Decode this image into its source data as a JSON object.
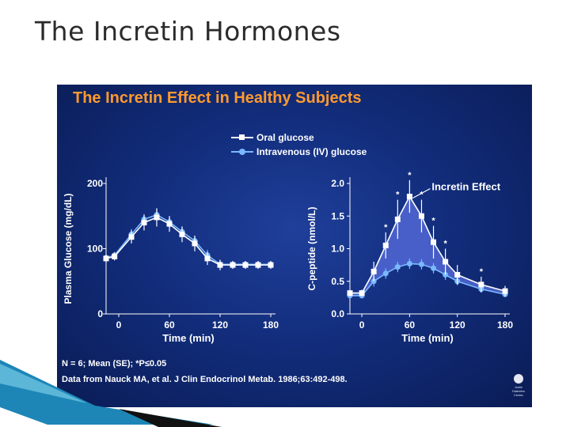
{
  "slide": {
    "title": "The Incretin Hormones"
  },
  "panel": {
    "title": "The Incretin Effect in Healthy Subjects",
    "legend": [
      {
        "label": "Oral glucose",
        "marker": "square",
        "color": "#ffffff"
      },
      {
        "label": "Intravenous (IV) glucose",
        "marker": "circle",
        "color": "#7ab8ff"
      }
    ],
    "footer_stats": "N = 6; Mean (SE); *P≤0.05",
    "citation": "Data from Nauck MA, et al. J Clin Endocrinol Metab. 1986;63:492-498.",
    "logo_text": [
      "Joslin",
      "Diabetes",
      "Center"
    ]
  },
  "colors": {
    "oral": "#ffffff",
    "iv": "#7ab8ff",
    "shade": "#5a6fe0",
    "title": "#ff9a2e",
    "axis": "#ffffff"
  },
  "chart_data": [
    {
      "type": "line",
      "ylabel": "Plasma Glucose (mg/dL)",
      "xlabel": "Time (min)",
      "xlim": [
        -15,
        180
      ],
      "ylim": [
        0,
        200
      ],
      "xticks": [
        0,
        60,
        120,
        180
      ],
      "xtick_labels": [
        "0",
        "60",
        "120",
        "180"
      ],
      "yticks": [
        0,
        100,
        200
      ],
      "ytick_labels": [
        "0",
        "100",
        "200"
      ],
      "series": [
        {
          "name": "Oral glucose",
          "x": [
            -15,
            -5,
            15,
            30,
            45,
            60,
            75,
            90,
            105,
            120,
            135,
            150,
            165,
            180
          ],
          "y": [
            85,
            88,
            118,
            140,
            148,
            138,
            122,
            108,
            85,
            75,
            75,
            75,
            75,
            75
          ],
          "err": [
            6,
            6,
            10,
            12,
            14,
            12,
            12,
            12,
            10,
            8,
            6,
            6,
            6,
            6
          ]
        },
        {
          "name": "Intravenous (IV) glucose",
          "x": [
            -15,
            -5,
            15,
            30,
            45,
            60,
            75,
            90,
            105,
            120,
            135,
            150,
            165,
            180
          ],
          "y": [
            86,
            90,
            122,
            145,
            152,
            141,
            126,
            112,
            90,
            76,
            76,
            76,
            76,
            76
          ],
          "err": [
            5,
            5,
            8,
            8,
            8,
            8,
            8,
            8,
            8,
            6,
            5,
            5,
            5,
            5
          ]
        }
      ]
    },
    {
      "type": "line",
      "ylabel": "C-peptide (nmol/L)",
      "xlabel": "Time (min)",
      "xlim": [
        -15,
        180
      ],
      "ylim": [
        0,
        2.0
      ],
      "xticks": [
        0,
        60,
        120,
        180
      ],
      "xtick_labels": [
        "0",
        "60",
        "120",
        "180"
      ],
      "yticks": [
        0,
        0.5,
        1.0,
        1.5,
        2.0
      ],
      "ytick_labels": [
        "0.0",
        "0.5",
        "1.0",
        "1.5",
        "2.0"
      ],
      "annotation": "Incretin Effect",
      "series": [
        {
          "name": "Oral glucose",
          "x": [
            -15,
            0,
            15,
            30,
            45,
            60,
            75,
            90,
            105,
            120,
            150,
            180
          ],
          "y": [
            0.32,
            0.32,
            0.65,
            1.05,
            1.45,
            1.8,
            1.5,
            1.1,
            0.8,
            0.6,
            0.45,
            0.35
          ],
          "err": [
            0.05,
            0.05,
            0.15,
            0.2,
            0.3,
            0.25,
            0.25,
            0.25,
            0.2,
            0.15,
            0.12,
            0.08
          ],
          "significant": [
            false,
            false,
            false,
            true,
            true,
            true,
            true,
            true,
            true,
            false,
            true,
            false
          ]
        },
        {
          "name": "Intravenous (IV) glucose",
          "x": [
            -15,
            0,
            15,
            30,
            45,
            60,
            75,
            90,
            105,
            120,
            150,
            180
          ],
          "y": [
            0.28,
            0.28,
            0.5,
            0.62,
            0.72,
            0.77,
            0.76,
            0.7,
            0.6,
            0.5,
            0.38,
            0.3
          ],
          "err": [
            0.04,
            0.04,
            0.08,
            0.08,
            0.08,
            0.08,
            0.08,
            0.08,
            0.08,
            0.06,
            0.05,
            0.04
          ]
        }
      ]
    }
  ]
}
